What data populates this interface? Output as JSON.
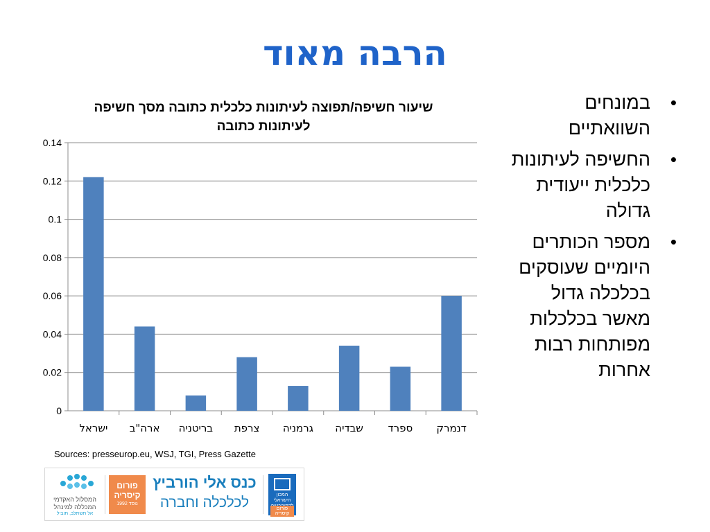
{
  "slide": {
    "title": "הרבה מאוד",
    "sources": "Sources: presseurop.eu,  WSJ, TGI, Press Gazette"
  },
  "bullets": [
    "במונחים השוואתיים",
    "החשיפה לעיתונות כלכלית ייעודית גדולה",
    "מספר הכותרים היומיים שעוסקים בכלכלה גדול מאשר בכלכלות מפותחות רבות אחרות"
  ],
  "bullet_symbol": "•",
  "logos": {
    "college_name": "המסלול האקדמי המכללה למינהל",
    "college_tagline": "אל תשתלב, תוביל",
    "caesarea_l1": "פורום",
    "caesarea_l2": "קיסריה",
    "caesarea_l3": "נוסד 1992",
    "conference_line1": "כנס אלי הורביץ",
    "conference_line2": "לכלכלה וחברה",
    "institute_line": "המכון הישראלי לדמוקרטיה",
    "institute_badge": "פורום קיסריה",
    "brand_orange": "#f08a4b",
    "brand_blue": "#1a7fbd"
  },
  "chart_data": {
    "type": "bar",
    "title": "שיעור חשיפה/תפוצה לעיתונות כלכלית כתובה מסך חשיפה לעיתונות כתובה",
    "categories": [
      "ישראל",
      "ארה\"ב",
      "בריטניה",
      "צרפת",
      "גרמניה",
      "שבדיה",
      "ספרד",
      "דנמרק"
    ],
    "values": [
      0.122,
      0.044,
      0.008,
      0.028,
      0.013,
      0.034,
      0.023,
      0.06
    ],
    "yticks": [
      "0",
      "0.02",
      "0.04",
      "0.06",
      "0.08",
      "0.1",
      "0.12",
      "0.14"
    ],
    "ylim": [
      0,
      0.14
    ],
    "grid": true,
    "bar_color": "#4f81bd",
    "xlabel": "",
    "ylabel": ""
  }
}
